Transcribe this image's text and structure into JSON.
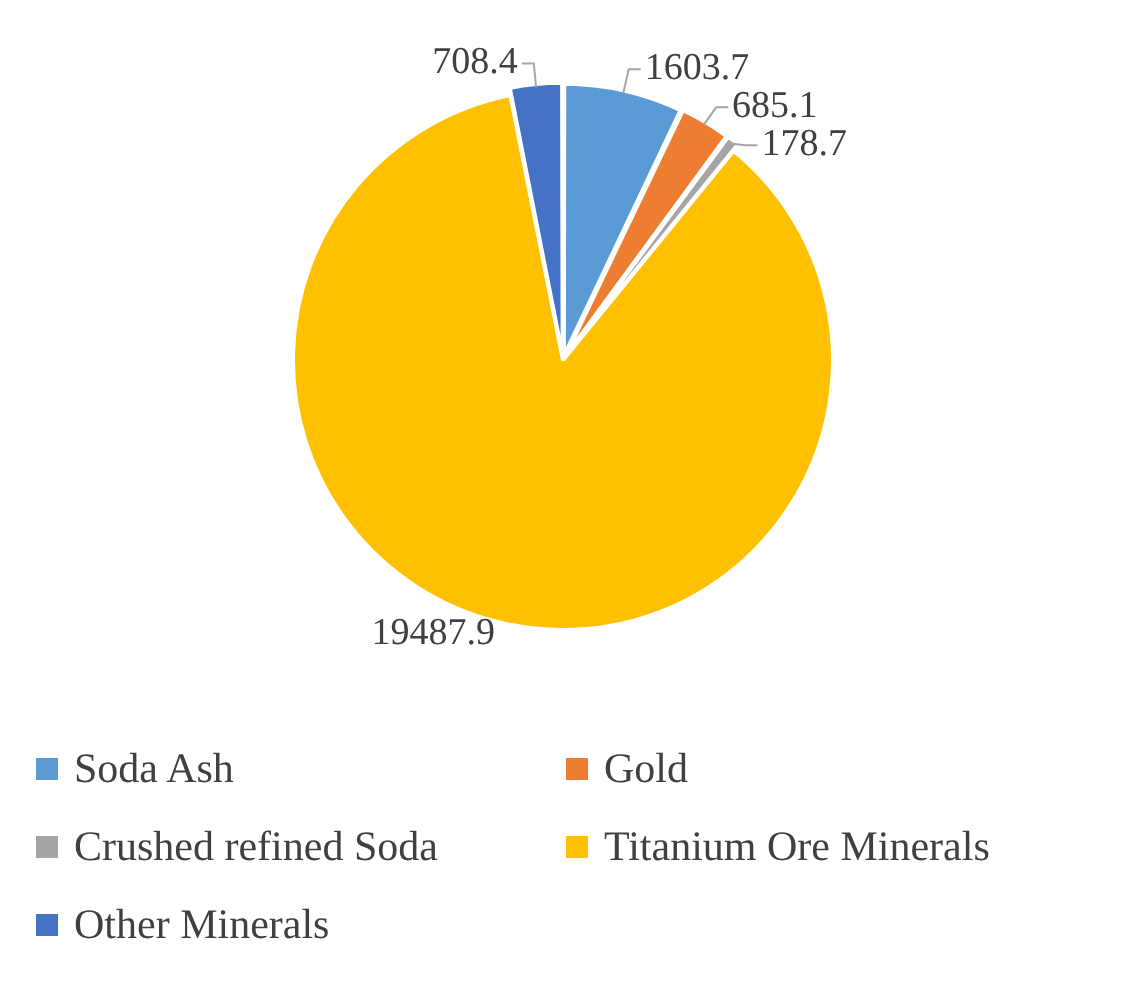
{
  "chart_data": {
    "type": "pie",
    "categories": [
      "Soda Ash",
      "Gold",
      "Crushed refined Soda",
      "Titanium Ore Minerals",
      "Other Minerals"
    ],
    "values": [
      1603.7,
      685.1,
      178.7,
      19487.9,
      708.4
    ],
    "colors": [
      "#5b9bd5",
      "#ed7d31",
      "#a5a5a5",
      "#ffc000",
      "#4472c4"
    ],
    "data_labels": true,
    "legend": "bottom"
  }
}
